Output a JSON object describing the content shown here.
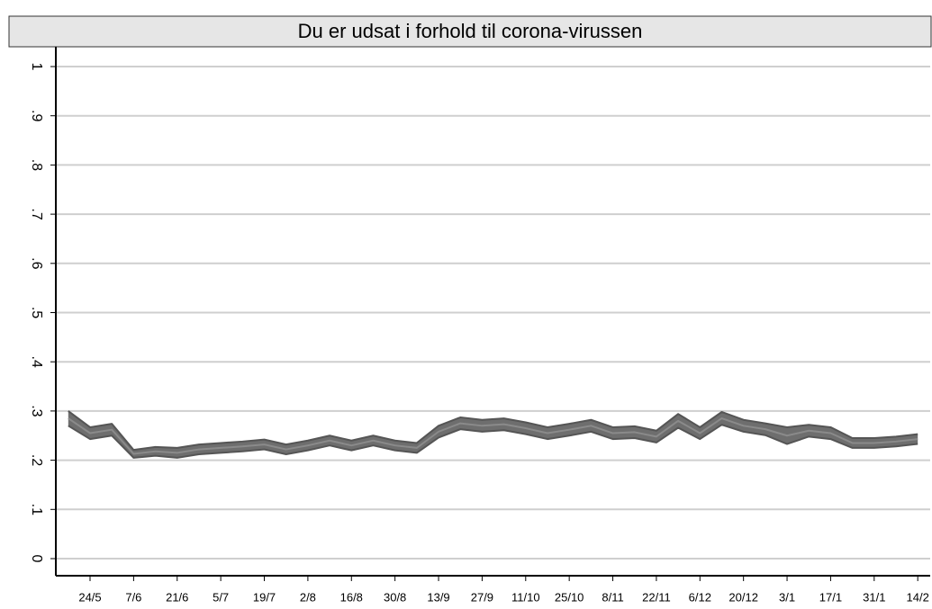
{
  "chart_data": {
    "type": "band-line",
    "title": "Du er udsat i forhold til corona-virussen",
    "x": [
      -7,
      0,
      7,
      14,
      21,
      28,
      35,
      42,
      49,
      56,
      63,
      70,
      77,
      84,
      91,
      98,
      105,
      112,
      119,
      126,
      133,
      140,
      147,
      154,
      161,
      168,
      175,
      182,
      189,
      196,
      203,
      210,
      217,
      224,
      231,
      238,
      245,
      252,
      259,
      266
    ],
    "values": [
      0.285,
      0.255,
      0.262,
      0.213,
      0.218,
      0.215,
      0.222,
      0.225,
      0.228,
      0.232,
      0.222,
      0.23,
      0.24,
      0.23,
      0.24,
      0.23,
      0.225,
      0.258,
      0.275,
      0.27,
      0.273,
      0.265,
      0.255,
      0.262,
      0.27,
      0.255,
      0.257,
      0.248,
      0.28,
      0.255,
      0.285,
      0.27,
      0.263,
      0.25,
      0.26,
      0.255,
      0.235,
      0.235,
      0.238,
      0.243
    ],
    "ci_lower": [
      0.27,
      0.243,
      0.25,
      0.205,
      0.209,
      0.205,
      0.212,
      0.215,
      0.218,
      0.222,
      0.212,
      0.22,
      0.23,
      0.22,
      0.23,
      0.22,
      0.215,
      0.246,
      0.263,
      0.258,
      0.261,
      0.253,
      0.243,
      0.25,
      0.258,
      0.243,
      0.245,
      0.236,
      0.266,
      0.243,
      0.272,
      0.258,
      0.251,
      0.233,
      0.248,
      0.243,
      0.225,
      0.225,
      0.228,
      0.233
    ],
    "ci_upper": [
      0.3,
      0.267,
      0.274,
      0.221,
      0.227,
      0.225,
      0.232,
      0.235,
      0.238,
      0.242,
      0.232,
      0.24,
      0.25,
      0.24,
      0.25,
      0.24,
      0.235,
      0.27,
      0.287,
      0.282,
      0.285,
      0.277,
      0.267,
      0.274,
      0.282,
      0.267,
      0.269,
      0.26,
      0.294,
      0.267,
      0.298,
      0.282,
      0.275,
      0.267,
      0.272,
      0.267,
      0.245,
      0.245,
      0.248,
      0.253
    ],
    "color": "#6e6e6e",
    "xlim": [
      -11,
      270
    ],
    "ylim": [
      0,
      1
    ],
    "yticks": [
      0,
      {
        "value": 0.1,
        "label": ".1"
      },
      {
        "value": 0.2,
        "label": ".2"
      },
      {
        "value": 0.3,
        "label": ".3"
      },
      {
        "value": 0.4,
        "label": ".4"
      },
      {
        "value": 0.5,
        "label": ".5"
      },
      {
        "value": 0.6,
        "label": ".6"
      },
      {
        "value": 0.7,
        "label": ".7"
      },
      {
        "value": 0.8,
        "label": ".8"
      },
      {
        "value": 0.9,
        "label": ".9"
      },
      1
    ],
    "xticks": [
      {
        "value": 0,
        "label": "24/5"
      },
      {
        "value": 14,
        "label": "7/6"
      },
      {
        "value": 28,
        "label": "21/6"
      },
      {
        "value": 42,
        "label": "5/7"
      },
      {
        "value": 56,
        "label": "19/7"
      },
      {
        "value": 70,
        "label": "2/8"
      },
      {
        "value": 84,
        "label": "16/8"
      },
      {
        "value": 98,
        "label": "30/8"
      },
      {
        "value": 112,
        "label": "13/9"
      },
      {
        "value": 126,
        "label": "27/9"
      },
      {
        "value": 140,
        "label": "11/10"
      },
      {
        "value": 154,
        "label": "25/10"
      },
      {
        "value": 168,
        "label": "8/11"
      },
      {
        "value": 182,
        "label": "22/11"
      },
      {
        "value": 196,
        "label": "6/12"
      },
      {
        "value": 210,
        "label": "20/12"
      },
      {
        "value": 224,
        "label": "3/1"
      },
      {
        "value": 238,
        "label": "17/1"
      },
      {
        "value": 252,
        "label": "31/1"
      },
      {
        "value": 266,
        "label": "14/2"
      }
    ],
    "grid": true
  }
}
